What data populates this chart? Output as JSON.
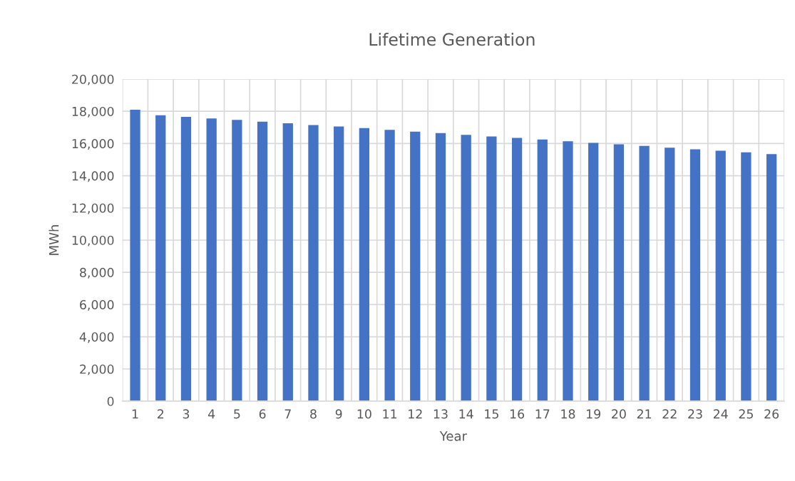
{
  "chart_data": {
    "type": "bar",
    "title": "Lifetime Generation",
    "xlabel": "Year",
    "ylabel": "MWh",
    "categories": [
      "1",
      "2",
      "3",
      "4",
      "5",
      "6",
      "7",
      "8",
      "9",
      "10",
      "11",
      "12",
      "13",
      "14",
      "15",
      "16",
      "17",
      "18",
      "19",
      "20",
      "21",
      "22",
      "23",
      "24",
      "25",
      "26"
    ],
    "series": [
      {
        "color": "#4472c4",
        "values": [
          18100,
          17750,
          17650,
          17550,
          17460,
          17360,
          17250,
          17150,
          17060,
          16960,
          16850,
          16740,
          16650,
          16540,
          16440,
          16350,
          16250,
          16140,
          16040,
          15950,
          15850,
          15740,
          15640,
          15550,
          15450,
          15340
        ]
      }
    ],
    "ylim": [
      0,
      20000
    ],
    "yticks": [
      {
        "value": 0,
        "label": "0"
      },
      {
        "value": 2000,
        "label": "2,000"
      },
      {
        "value": 4000,
        "label": "4,000"
      },
      {
        "value": 6000,
        "label": "6,000"
      },
      {
        "value": 8000,
        "label": "8,000"
      },
      {
        "value": 10000,
        "label": "10,000"
      },
      {
        "value": 12000,
        "label": "12,000"
      },
      {
        "value": 14000,
        "label": "14,000"
      },
      {
        "value": 16000,
        "label": "16,000"
      },
      {
        "value": 18000,
        "label": "18,000"
      },
      {
        "value": 20000,
        "label": "20,000"
      }
    ],
    "grid": true
  }
}
